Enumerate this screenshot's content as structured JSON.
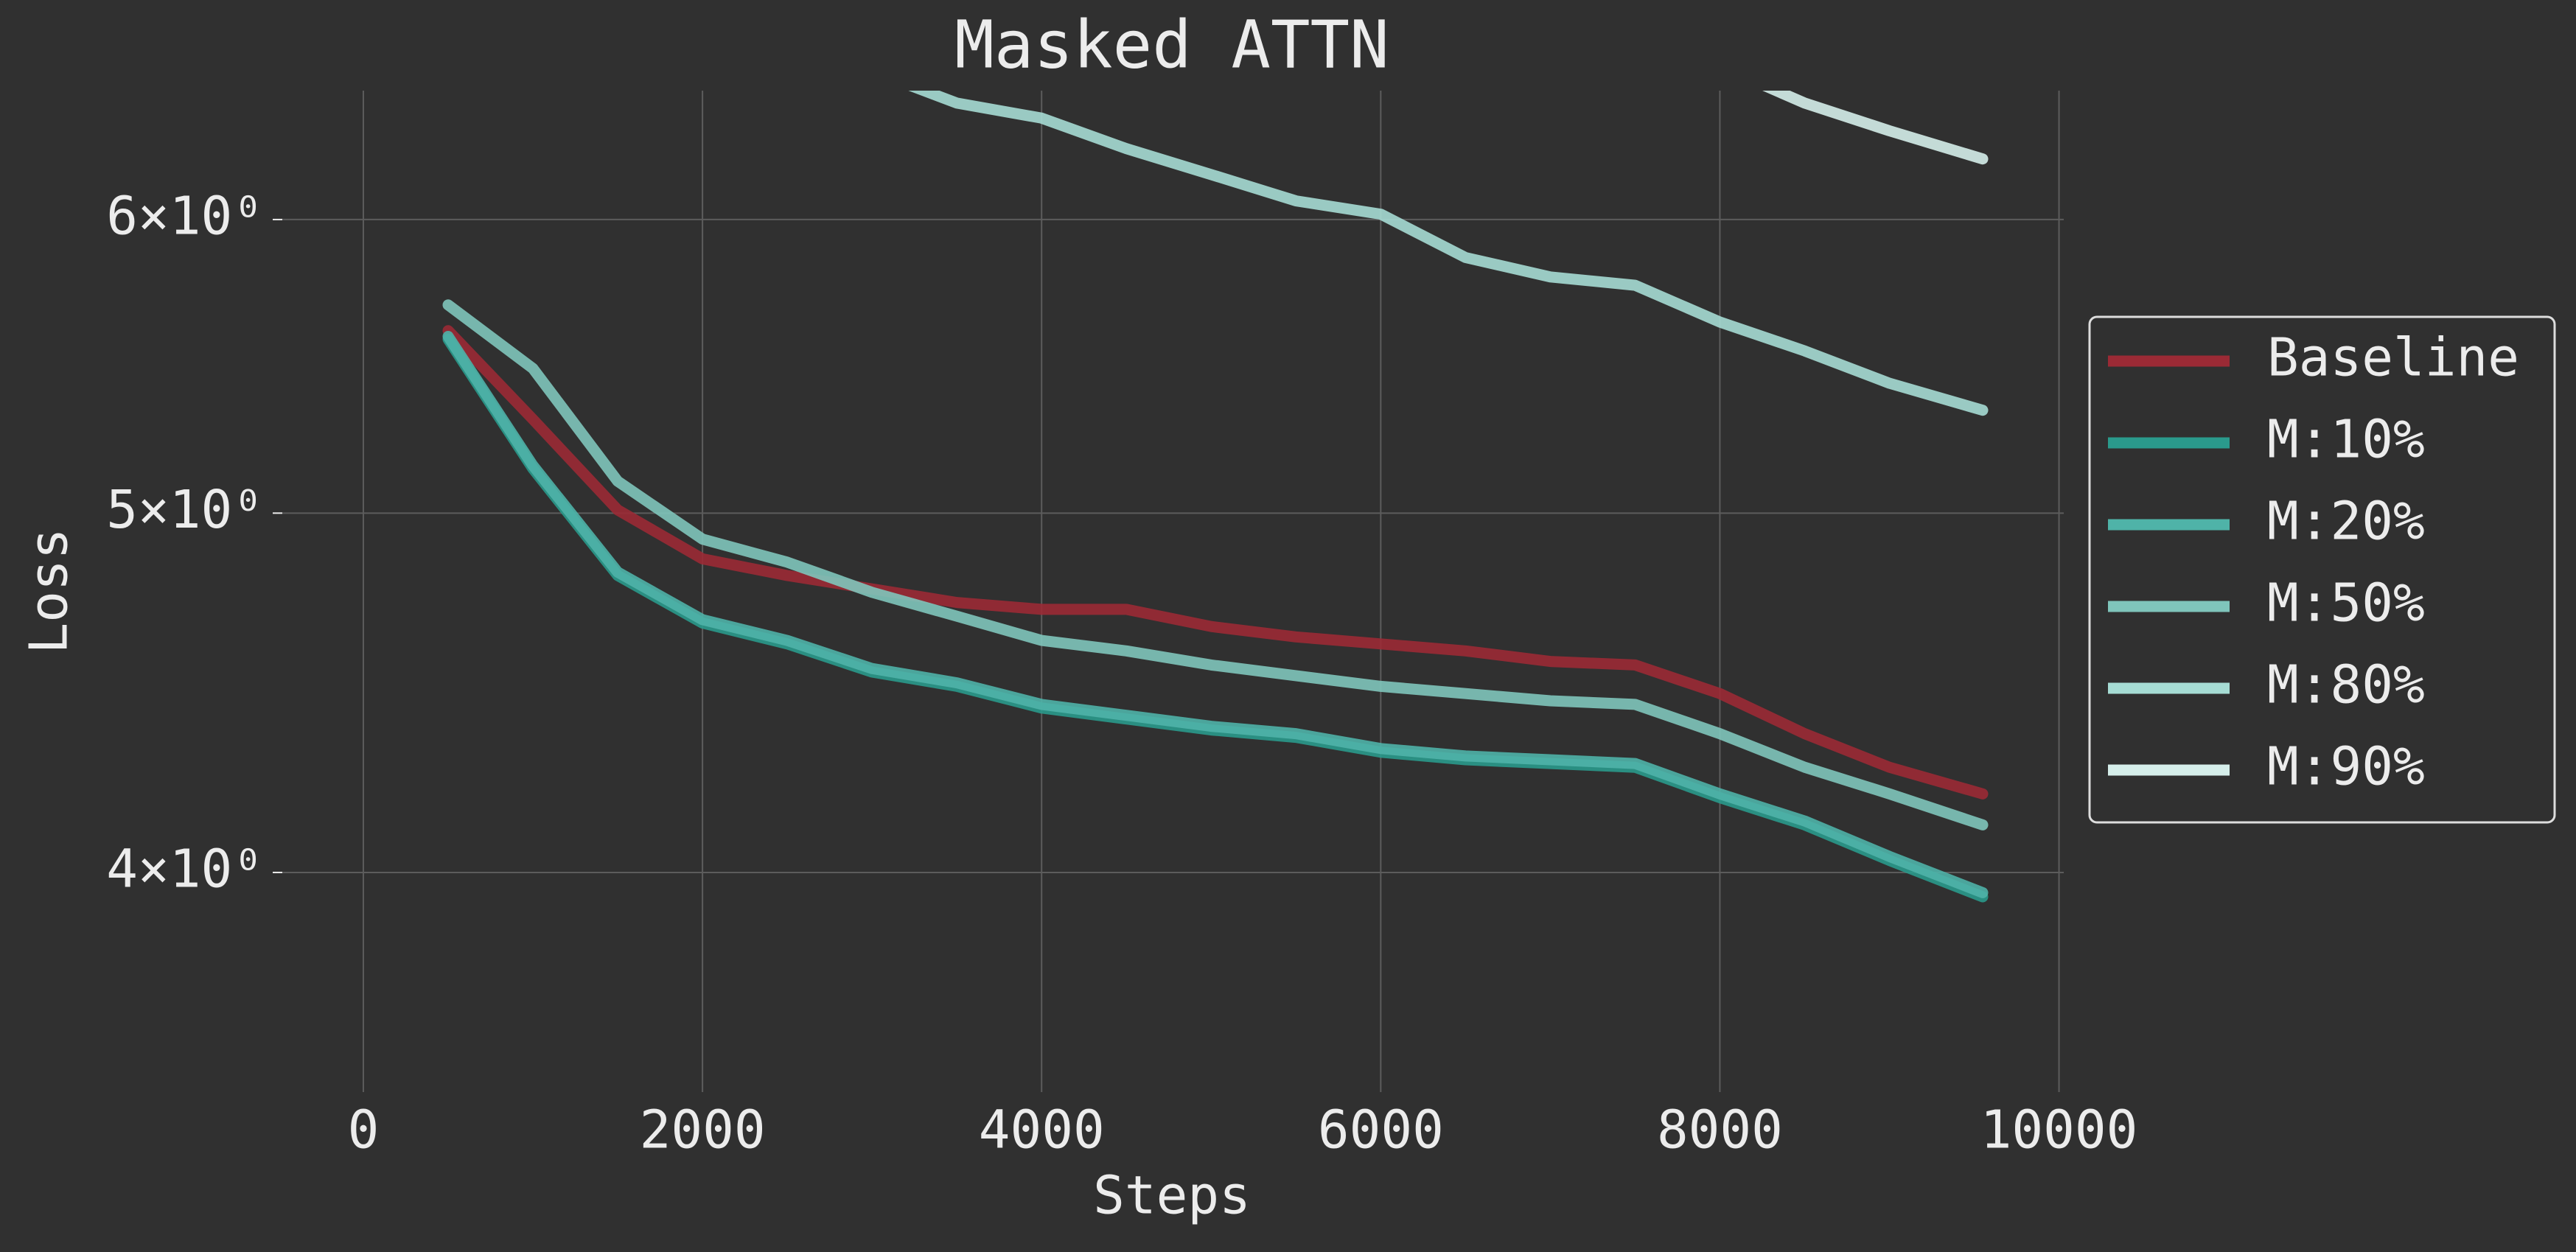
{
  "chart_data": {
    "type": "line",
    "title": "Masked ATTN",
    "x_label": "Steps",
    "y_label": "Loss",
    "x": [
      500,
      1000,
      1500,
      2000,
      2500,
      3000,
      3500,
      4000,
      4500,
      5000,
      5500,
      6000,
      6500,
      7000,
      7500,
      8000,
      8500,
      9000,
      9550
    ],
    "series": [
      {
        "name": "Baseline",
        "color": "#9b2a35",
        "values": [
          5.6,
          5.3,
          5.01,
          4.86,
          4.81,
          4.77,
          4.73,
          4.71,
          4.71,
          4.66,
          4.63,
          4.61,
          4.59,
          4.56,
          4.55,
          4.47,
          4.36,
          4.27,
          4.2
        ]
      },
      {
        "name": "M:10%",
        "color": "#2a9a8c",
        "values": [
          5.57,
          5.14,
          4.81,
          4.67,
          4.61,
          4.53,
          4.49,
          4.43,
          4.4,
          4.37,
          4.35,
          4.31,
          4.29,
          4.28,
          4.27,
          4.19,
          4.12,
          4.03,
          3.94
        ]
      },
      {
        "name": "M:20%",
        "color": "#4fb3a8",
        "values": [
          5.58,
          5.15,
          4.82,
          4.68,
          4.62,
          4.54,
          4.5,
          4.44,
          4.41,
          4.38,
          4.36,
          4.32,
          4.3,
          4.29,
          4.28,
          4.2,
          4.13,
          4.04,
          3.95
        ]
      },
      {
        "name": "M:50%",
        "color": "#7fc5bb",
        "values": [
          5.69,
          5.47,
          5.1,
          4.92,
          4.85,
          4.76,
          4.69,
          4.62,
          4.59,
          4.55,
          4.52,
          4.49,
          4.47,
          4.45,
          4.44,
          4.36,
          4.27,
          4.2,
          4.12
        ]
      },
      {
        "name": "M:80%",
        "color": "#a6dcd4",
        "values": [
          null,
          null,
          null,
          null,
          null,
          6.58,
          6.45,
          6.39,
          6.27,
          6.17,
          6.07,
          6.02,
          5.86,
          5.79,
          5.76,
          5.63,
          5.53,
          5.42,
          5.33
        ]
      },
      {
        "name": "M:90%",
        "color": "#d5eeea",
        "values": [
          null,
          null,
          null,
          null,
          null,
          null,
          null,
          null,
          null,
          null,
          null,
          null,
          null,
          null,
          null,
          6.6,
          6.45,
          6.34,
          6.23
        ]
      }
    ],
    "xlim": [
      -478,
      10028
    ],
    "xticks": [
      0,
      2000,
      4000,
      6000,
      8000,
      10000
    ],
    "ylim": [
      3.49,
      6.5
    ],
    "log_y": true,
    "yticks": [
      {
        "value": 4,
        "label": "4×10⁰"
      },
      {
        "value": 5,
        "label": "5×10⁰"
      },
      {
        "value": 6,
        "label": "6×10⁰"
      }
    ],
    "grid": true,
    "legend_position": "right"
  }
}
